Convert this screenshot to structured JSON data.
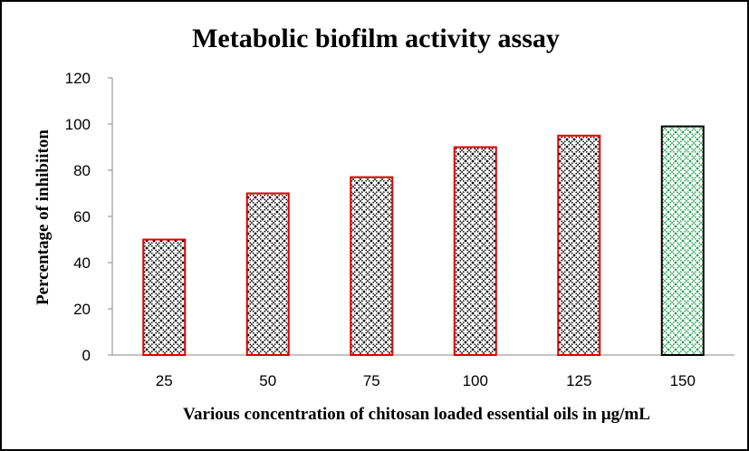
{
  "chart_data": {
    "type": "bar",
    "title": "Metabolic biofilm activity assay",
    "xlabel": "Various concentration of chitosan loaded essential oils in µg/mL",
    "ylabel": "Percentage of inhibiiton",
    "categories": [
      "25",
      "50",
      "75",
      "100",
      "125",
      "150"
    ],
    "values": [
      50,
      70,
      77,
      90,
      95,
      99
    ],
    "ylim": [
      0,
      120
    ],
    "yticks": [
      0,
      20,
      40,
      60,
      80,
      100,
      120
    ],
    "grid": false,
    "legend": "none",
    "bar_styles": [
      {
        "pattern_color": "#000000",
        "border_color": "#e00000"
      },
      {
        "pattern_color": "#000000",
        "border_color": "#e00000"
      },
      {
        "pattern_color": "#000000",
        "border_color": "#e00000"
      },
      {
        "pattern_color": "#000000",
        "border_color": "#e00000"
      },
      {
        "pattern_color": "#000000",
        "border_color": "#e00000"
      },
      {
        "pattern_color": "#1fa24a",
        "border_color": "#000000"
      }
    ]
  }
}
